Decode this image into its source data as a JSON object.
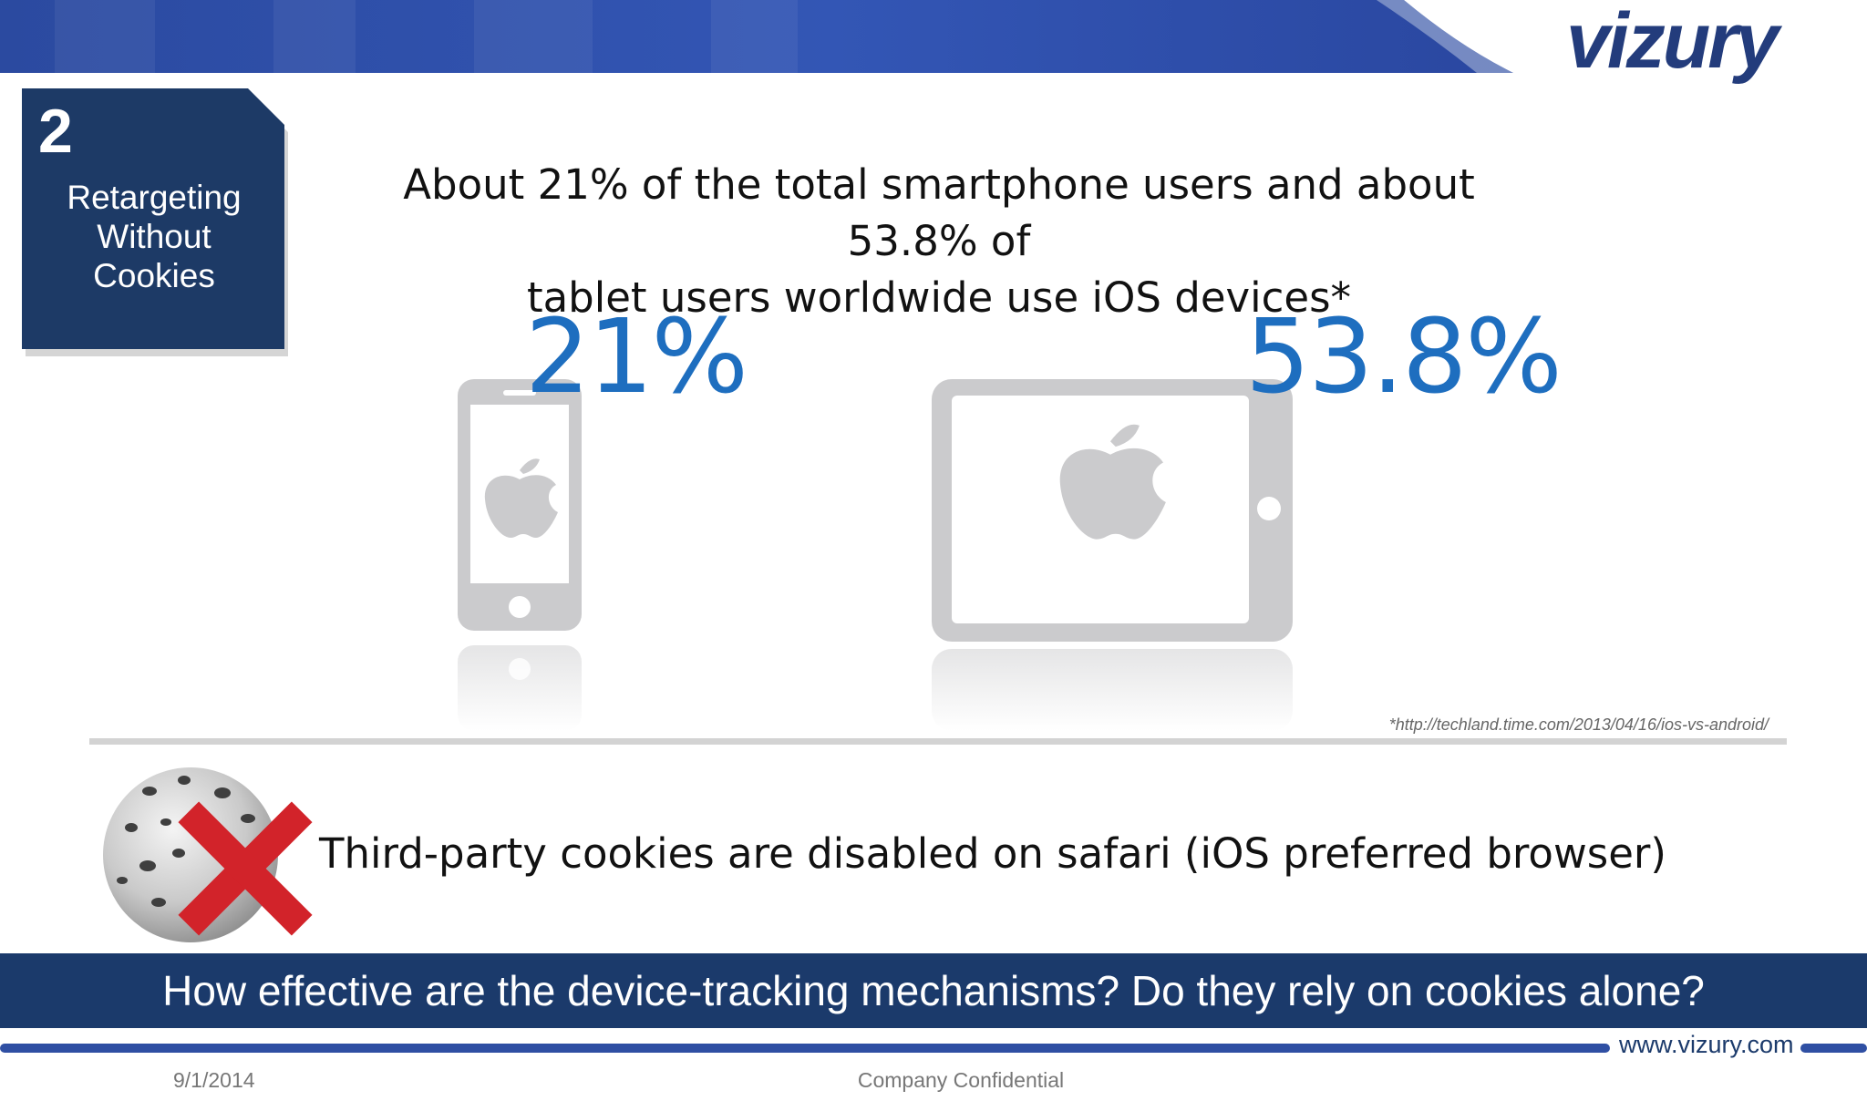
{
  "brand": {
    "logo_text": "vizury",
    "website": "www.vizury.com"
  },
  "section": {
    "number": "2",
    "title_lines": [
      "Retargeting",
      "Without",
      "Cookies"
    ]
  },
  "headline": {
    "line1": "About 21% of the total smartphone users and about 53.8% of",
    "line2": "tablet users worldwide use iOS devices*"
  },
  "stats": {
    "smartphone": {
      "value": "21%",
      "device_icon": "iphone-icon"
    },
    "tablet": {
      "value": "53.8%",
      "device_icon": "ipad-icon"
    }
  },
  "footnote": "*http://techland.time.com/2013/04/16/ios-vs-android/",
  "cookie_statement": {
    "text": "Third-party cookies are disabled on safari (iOS preferred browser)",
    "icon": "cookie-crossed-icon"
  },
  "question": "How effective are the device-tracking mechanisms?  Do they rely on cookies alone?",
  "footer": {
    "date": "9/1/2014",
    "confidential": "Company Confidential"
  },
  "colors": {
    "navy": "#1b3a6b",
    "brand_blue": "#233c7c",
    "stat_blue": "#1e6ebf",
    "device_gray": "#cbcbcd",
    "cross_red": "#d2232a"
  }
}
